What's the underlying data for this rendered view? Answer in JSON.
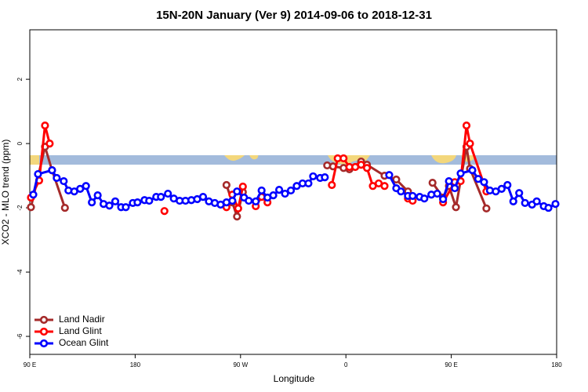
{
  "chart_data": {
    "type": "line",
    "title": "15N-20N January (Ver 9)   2014-09-06 to 2018-12-31",
    "x_label": "Longitude",
    "y_label": "XCO2 - MLO trend (ppm)",
    "xlim": [
      90,
      540
    ],
    "xticks": [
      {
        "value": 90,
        "label": "90 E"
      },
      180,
      {
        "value": 270,
        "label": "90 W"
      },
      {
        "value": 360,
        "label": "0"
      },
      {
        "value": 450,
        "label": "90 E"
      },
      {
        "value": 540,
        "label": "180"
      }
    ],
    "ylim": [
      -6.56,
      3.54
    ],
    "yticks": [
      2,
      0,
      -2,
      -4,
      -6
    ],
    "legend": "bottom-left",
    "series": [
      {
        "name": "Land Nadir",
        "color": "#a52a2a",
        "x": [
          91,
          103,
          109,
          120,
          null,
          258,
          263,
          267,
          272,
          null,
          344,
          349,
          358,
          363,
          373,
          378,
          393,
          403,
          413,
          null,
          434,
          443,
          448,
          454,
          463,
          466,
          480
        ],
        "values": [
          -1.98,
          -0.1,
          -0.83,
          -2.0,
          null,
          -1.29,
          -1.83,
          -2.27,
          -1.51,
          null,
          -0.68,
          -0.71,
          -0.76,
          -0.8,
          -0.56,
          -0.66,
          -1.0,
          -1.12,
          -1.49,
          null,
          -1.22,
          -1.68,
          -1.32,
          -1.98,
          -0.1,
          -0.78,
          -2.02
        ]
      },
      {
        "name": "Land Glint",
        "color": "#ff0000",
        "x": [
          91,
          98,
          103,
          107,
          null,
          205,
          null,
          258,
          263,
          268,
          272,
          null,
          283,
          288,
          293,
          null,
          348,
          353,
          358,
          363,
          368,
          373,
          378,
          383,
          388,
          393,
          null,
          413,
          417,
          null,
          443,
          453,
          458,
          463,
          466,
          480
        ],
        "values": [
          -1.68,
          -1.15,
          0.56,
          0.0,
          null,
          -2.1,
          null,
          -1.98,
          -1.59,
          -2.02,
          -1.34,
          null,
          -1.95,
          -1.66,
          -1.83,
          null,
          -1.29,
          -0.46,
          -0.46,
          -0.73,
          -0.73,
          -0.66,
          -0.76,
          -1.32,
          -1.24,
          -1.32,
          null,
          -1.71,
          -1.78,
          null,
          -1.83,
          -1.2,
          -1.17,
          0.56,
          0.0,
          -1.49
        ]
      },
      {
        "name": "Ocean Glint",
        "color": "#0000ff",
        "x": [
          93,
          97,
          109,
          113,
          119,
          123,
          128,
          133,
          138,
          143,
          148,
          153,
          158,
          163,
          168,
          172,
          178,
          182,
          188,
          192,
          198,
          202,
          208,
          213,
          218,
          223,
          228,
          233,
          238,
          243,
          248,
          253,
          258,
          263,
          267,
          273,
          277,
          283,
          288,
          293,
          298,
          303,
          308,
          313,
          318,
          323,
          328,
          332,
          338,
          342,
          null,
          397,
          403,
          407,
          413,
          417,
          423,
          427,
          433,
          438,
          443,
          448,
          453,
          458,
          468,
          473,
          478,
          483,
          488,
          493,
          498,
          503,
          508,
          513,
          519,
          523,
          529,
          533,
          539
        ],
        "values": [
          -1.59,
          -0.95,
          -0.83,
          -1.07,
          -1.17,
          -1.46,
          -1.49,
          -1.41,
          -1.32,
          -1.83,
          -1.61,
          -1.88,
          -1.93,
          -1.8,
          -1.98,
          -1.98,
          -1.85,
          -1.83,
          -1.76,
          -1.78,
          -1.66,
          -1.66,
          -1.56,
          -1.71,
          -1.78,
          -1.78,
          -1.76,
          -1.73,
          -1.66,
          -1.8,
          -1.85,
          -1.9,
          -1.83,
          -1.78,
          -1.49,
          -1.68,
          -1.78,
          -1.8,
          -1.46,
          -1.68,
          -1.61,
          -1.44,
          -1.56,
          -1.46,
          -1.32,
          -1.24,
          -1.24,
          -1.02,
          -1.07,
          -1.05,
          null,
          -0.98,
          -1.39,
          -1.49,
          -1.63,
          -1.63,
          -1.66,
          -1.71,
          -1.59,
          -1.56,
          -1.73,
          -1.17,
          -1.39,
          -0.93,
          -0.83,
          -1.1,
          -1.2,
          -1.46,
          -1.49,
          -1.41,
          -1.29,
          -1.8,
          -1.54,
          -1.85,
          -1.9,
          -1.8,
          -1.95,
          -2.0,
          -1.88
        ]
      }
    ]
  }
}
